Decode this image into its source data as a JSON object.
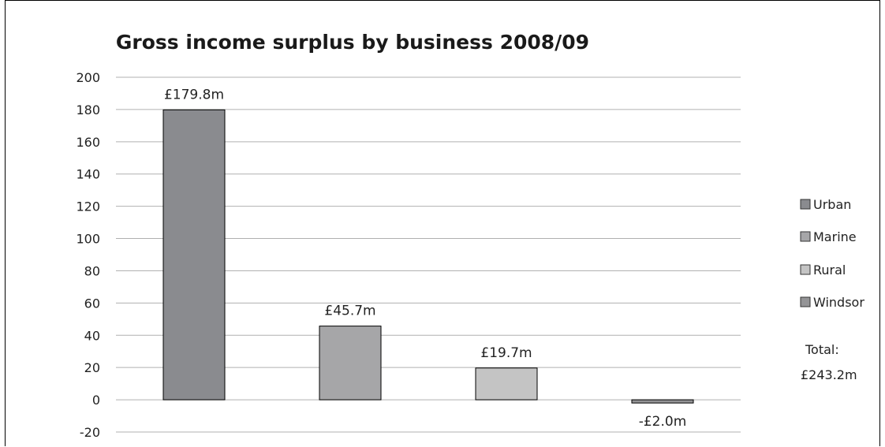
{
  "chart_data": {
    "type": "bar",
    "title": "Gross income surplus by business 2008/09",
    "xlabel": "",
    "ylabel": "",
    "ylim": [
      -20,
      200
    ],
    "yticks": [
      200,
      180,
      160,
      140,
      120,
      100,
      80,
      60,
      40,
      20,
      0,
      -20
    ],
    "grid": true,
    "legend_position": "right",
    "categories": [
      "Urban",
      "Marine",
      "Rural",
      "Windsor"
    ],
    "values": [
      179.8,
      45.7,
      19.7,
      -2.0
    ],
    "data_labels": [
      "£179.8m",
      "£45.7m",
      "£19.7m",
      "-£2.0m"
    ],
    "colors": [
      "#8a8b8f",
      "#a6a6a8",
      "#c4c4c4",
      "#949496"
    ],
    "total_label": "Total:",
    "total_value": "£243.2m"
  }
}
